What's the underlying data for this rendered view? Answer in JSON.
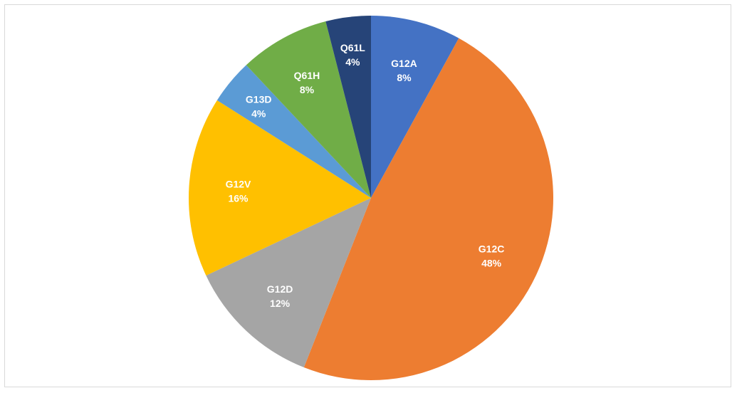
{
  "chart_data": {
    "type": "pie",
    "title": "",
    "start_angle_deg": 0,
    "direction": "clockwise",
    "legend": "none",
    "slices": [
      {
        "name": "G12A",
        "value": 8,
        "label": "8%",
        "color": "#4472C4"
      },
      {
        "name": "G12C",
        "value": 48,
        "label": "48%",
        "color": "#ED7D31"
      },
      {
        "name": "G12D",
        "value": 12,
        "label": "12%",
        "color": "#A5A5A5"
      },
      {
        "name": "G12V",
        "value": 16,
        "label": "16%",
        "color": "#FFC000"
      },
      {
        "name": "G13D",
        "value": 4,
        "label": "4%",
        "color": "#5B9BD5"
      },
      {
        "name": "Q61H",
        "value": 8,
        "label": "8%",
        "color": "#70AD47"
      },
      {
        "name": "Q61L",
        "value": 4,
        "label": "4%",
        "color": "#264478"
      }
    ]
  }
}
